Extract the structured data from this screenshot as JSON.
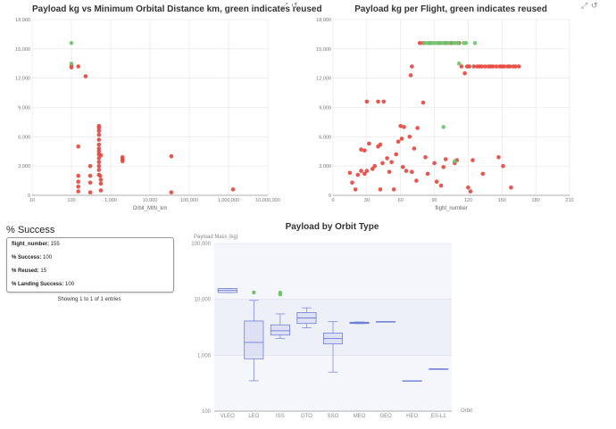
{
  "chart1": {
    "title": "Payload kg vs Minimum Orbital Distance km, green indicates reused",
    "chart_data": {
      "type": "scatter",
      "title": "Payload kg vs Minimum Orbital Distance km, green indicates reused",
      "xlabel": "Orbit_MIN_km",
      "ylabel": "",
      "xscale": "log",
      "xlim": [
        10,
        10000000
      ],
      "ylim": [
        0,
        18000
      ],
      "xticks": [
        "10",
        "100",
        "1,000",
        "10,000",
        "100,000",
        "1,000,000",
        "10,000,000"
      ],
      "yticks": [
        "0",
        "3,000",
        "6,000",
        "9,000",
        "12,000",
        "15,000",
        "18,000"
      ],
      "grid": true,
      "series": [
        {
          "color": "#e8443a",
          "points": [
            [
              100,
              13300
            ],
            [
              100,
              13100
            ],
            [
              150,
              13200
            ],
            [
              230,
              12200
            ],
            [
              150,
              5000
            ],
            [
              150,
              2000
            ],
            [
              150,
              1400
            ],
            [
              150,
              900
            ],
            [
              150,
              400
            ],
            [
              300,
              3000
            ],
            [
              300,
              2000
            ],
            [
              300,
              1300
            ],
            [
              300,
              300
            ],
            [
              500,
              7100
            ],
            [
              500,
              6900
            ],
            [
              500,
              6600
            ],
            [
              500,
              6200
            ],
            [
              500,
              5700
            ],
            [
              500,
              5200
            ],
            [
              500,
              4800
            ],
            [
              500,
              4500
            ],
            [
              500,
              4200
            ],
            [
              500,
              3800
            ],
            [
              500,
              3400
            ],
            [
              500,
              3000
            ],
            [
              500,
              2600
            ],
            [
              500,
              2100
            ],
            [
              540,
              2000
            ],
            [
              560,
              4100
            ],
            [
              560,
              1600
            ],
            [
              560,
              1200
            ],
            [
              560,
              500
            ],
            [
              2000,
              3900
            ],
            [
              2000,
              3700
            ],
            [
              2000,
              3500
            ],
            [
              35000,
              4000
            ],
            [
              35000,
              300
            ],
            [
              1300000,
              600
            ]
          ]
        },
        {
          "color": "#6fc36b",
          "points": [
            [
              100,
              15600
            ],
            [
              100,
              13500
            ]
          ]
        }
      ]
    }
  },
  "chart2": {
    "title": "Payload kg per Flight, green indicates reused",
    "chart_data": {
      "type": "scatter",
      "title": "Payload kg per Flight, green indicates reused",
      "xlabel": "flight_number",
      "ylabel": "",
      "xlim": [
        0,
        210
      ],
      "ylim": [
        0,
        18000
      ],
      "xticks": [
        "0",
        "30",
        "60",
        "90",
        "120",
        "150",
        "180",
        "210"
      ],
      "yticks": [
        "0",
        "3,000",
        "6,000",
        "9,000",
        "12,000",
        "15,000",
        "18,000"
      ],
      "grid": true,
      "series": [
        {
          "color": "#e8443a",
          "points": [
            [
              15,
              2300
            ],
            [
              17,
              1300
            ],
            [
              20,
              600
            ],
            [
              22,
              2100
            ],
            [
              25,
              4700
            ],
            [
              25,
              2500
            ],
            [
              28,
              4600
            ],
            [
              28,
              2200
            ],
            [
              30,
              2500
            ],
            [
              30,
              9600
            ],
            [
              32,
              5300
            ],
            [
              35,
              2700
            ],
            [
              37,
              3000
            ],
            [
              40,
              9600
            ],
            [
              40,
              5000
            ],
            [
              42,
              5200
            ],
            [
              42,
              600
            ],
            [
              44,
              3300
            ],
            [
              45,
              9600
            ],
            [
              48,
              3800
            ],
            [
              50,
              2400
            ],
            [
              52,
              3400
            ],
            [
              54,
              600
            ],
            [
              56,
              4200
            ],
            [
              58,
              5500
            ],
            [
              60,
              7100
            ],
            [
              61,
              5800
            ],
            [
              62,
              2900
            ],
            [
              63,
              7000
            ],
            [
              65,
              2500
            ],
            [
              68,
              6000
            ],
            [
              69,
              12300
            ],
            [
              70,
              13200
            ],
            [
              70,
              2400
            ],
            [
              72,
              4800
            ],
            [
              74,
              1500
            ],
            [
              75,
              6900
            ],
            [
              77,
              15600
            ],
            [
              80,
              9500
            ],
            [
              80,
              15600
            ],
            [
              82,
              3900
            ],
            [
              84,
              2200
            ],
            [
              86,
              15600
            ],
            [
              90,
              3300
            ],
            [
              92,
              1400
            ],
            [
              94,
              15600
            ],
            [
              96,
              1000
            ],
            [
              98,
              2900
            ],
            [
              100,
              3700
            ],
            [
              100,
              15600
            ],
            [
              105,
              15600
            ],
            [
              108,
              3300
            ],
            [
              110,
              3600
            ],
            [
              112,
              15600
            ],
            [
              114,
              13200
            ],
            [
              117,
              12500
            ],
            [
              119,
              13200
            ],
            [
              120,
              800
            ],
            [
              121,
              13200
            ],
            [
              122,
              400
            ],
            [
              124,
              3600
            ],
            [
              125,
              13200
            ],
            [
              128,
              13200
            ],
            [
              130,
              13200
            ],
            [
              132,
              13200
            ],
            [
              133,
              2200
            ],
            [
              135,
              13200
            ],
            [
              138,
              13200
            ],
            [
              140,
              13200
            ],
            [
              142,
              13200
            ],
            [
              145,
              13200
            ],
            [
              147,
              3900
            ],
            [
              148,
              13200
            ],
            [
              150,
              13200
            ],
            [
              151,
              3000
            ],
            [
              152,
              13200
            ],
            [
              155,
              13200
            ],
            [
              157,
              13200
            ],
            [
              158,
              800
            ],
            [
              160,
              13200
            ],
            [
              162,
              13200
            ],
            [
              165,
              13200
            ]
          ]
        },
        {
          "color": "#6fc36b",
          "points": [
            [
              81,
              15600
            ],
            [
              83,
              15600
            ],
            [
              85,
              15600
            ],
            [
              87,
              15600
            ],
            [
              89,
              15600
            ],
            [
              91,
              15600
            ],
            [
              93,
              15600
            ],
            [
              95,
              15600
            ],
            [
              97,
              15600
            ],
            [
              99,
              15600
            ],
            [
              101,
              15600
            ],
            [
              103,
              15600
            ],
            [
              107,
              15600
            ],
            [
              109,
              15600
            ],
            [
              111,
              15600
            ],
            [
              116,
              15600
            ],
            [
              118,
              15600
            ],
            [
              126,
              15600
            ],
            [
              112,
              13500
            ],
            [
              98,
              7000
            ],
            [
              108,
              3500
            ]
          ]
        }
      ]
    }
  },
  "chart3": {
    "title": "Payload by Orbit Type",
    "chart_data": {
      "type": "box",
      "title": "Payload by Orbit Type",
      "xlabel": "Orbit",
      "ylabel": "Payload Mass (kg)",
      "yscale": "log",
      "ylim": [
        100,
        100000
      ],
      "yticks": [
        "100",
        "1,000",
        "10,000",
        "100,000"
      ],
      "categories": [
        "VLEO",
        "LEO",
        "ISS",
        "GTO",
        "SSO",
        "MEO",
        "GEO",
        "HEO",
        "ES-L1"
      ],
      "boxes": [
        {
          "category": "VLEO",
          "min": 13260,
          "q1": 13260,
          "median": 14500,
          "q3": 15600,
          "max": 15600,
          "outliers": []
        },
        {
          "category": "LEO",
          "min": 350,
          "q1": 865,
          "median": 1700,
          "q3": 4100,
          "max": 9600,
          "outliers": [
            13300
          ]
        },
        {
          "category": "ISS",
          "min": 2000,
          "q1": 2300,
          "median": 2750,
          "q3": 3500,
          "max": 5500,
          "outliers": [
            12300,
            13200
          ]
        },
        {
          "category": "GTO",
          "min": 3100,
          "q1": 3700,
          "median": 4650,
          "q3": 5800,
          "max": 7060,
          "outliers": []
        },
        {
          "category": "SSO",
          "min": 500,
          "q1": 1600,
          "median": 2000,
          "q3": 2500,
          "max": 4000,
          "outliers": []
        },
        {
          "category": "MEO",
          "min": 3680,
          "q1": 3700,
          "median": 3800,
          "q3": 3900,
          "max": 3950,
          "outliers": []
        },
        {
          "category": "GEO",
          "min": 4000,
          "q1": 4000,
          "median": 4000,
          "q3": 4000,
          "max": 4000,
          "outliers": []
        },
        {
          "category": "HEO",
          "min": 350,
          "q1": 350,
          "median": 350,
          "q3": 350,
          "max": 350,
          "outliers": []
        },
        {
          "category": "ES-L1",
          "min": 570,
          "q1": 570,
          "median": 570,
          "q3": 570,
          "max": 570,
          "outliers": []
        }
      ]
    }
  },
  "stats": {
    "heading": "% Success",
    "rows": [
      {
        "key": "flight_number",
        "value": "155"
      },
      {
        "key": "% Success",
        "value": "100"
      },
      {
        "key": "% Reused",
        "value": "15"
      },
      {
        "key": "% Landing Success",
        "value": "100"
      }
    ],
    "entries": "Showing 1 to 1 of 1 entries"
  },
  "colors": {
    "red": "#e8443a",
    "green": "#6fc36b",
    "box": "#6f7fd8",
    "grid": "#e4e4e4",
    "band": "#eef0f8"
  }
}
